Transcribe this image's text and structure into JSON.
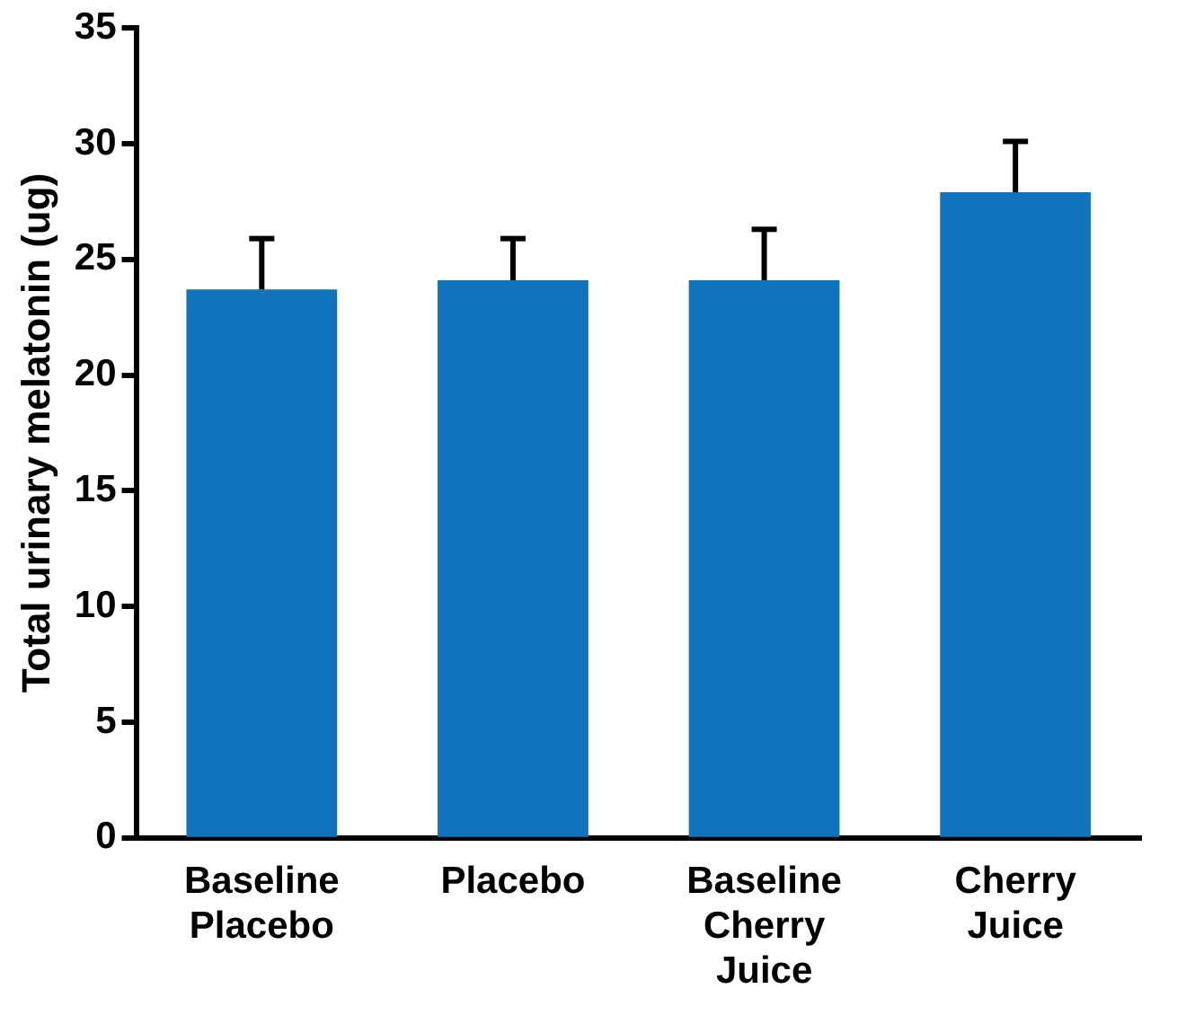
{
  "chart_data": {
    "type": "bar",
    "ylabel": "Total urinary melatonin (ug)",
    "categories": [
      "Baseline Placebo",
      "Placebo",
      "Baseline Cherry Juice",
      "Cherry Juice"
    ],
    "values": [
      23.7,
      24.1,
      24.1,
      27.9
    ],
    "errors": [
      [
        23.7,
        25.9
      ],
      [
        24.1,
        25.9
      ],
      [
        24.1,
        26.3
      ],
      [
        27.9,
        30.1
      ]
    ],
    "color": "#1173bb",
    "ylim": [
      0,
      35
    ],
    "yticks": [
      0,
      5,
      10,
      15,
      20,
      25,
      30,
      35
    ],
    "grid": false,
    "legend": false
  }
}
